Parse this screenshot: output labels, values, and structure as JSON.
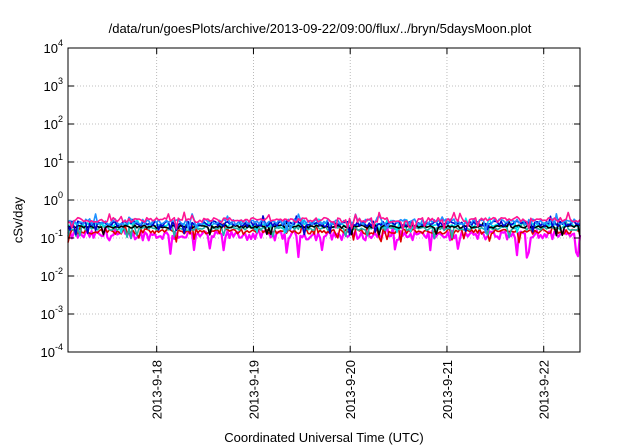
{
  "chart_data": {
    "type": "line",
    "title": "/data/run/goesPlots/archive/2013-09-22/09:00/flux/../bryn/5daysMoon.plot",
    "xlabel": "Coordinated Universal Time (UTC)",
    "ylabel": "cSv/day",
    "yscale": "log",
    "ylim": [
      0.0001,
      10000
    ],
    "xlim": [
      "2013-09-17 02:00",
      "2013-09-22 09:00"
    ],
    "grid": true,
    "legend": "none",
    "yticks": [
      {
        "base": "10",
        "exp": "-4",
        "value": 0.0001
      },
      {
        "base": "10",
        "exp": "-3",
        "value": 0.001
      },
      {
        "base": "10",
        "exp": "-2",
        "value": 0.01
      },
      {
        "base": "10",
        "exp": "-1",
        "value": 0.1
      },
      {
        "base": "10",
        "exp": "0",
        "value": 1
      },
      {
        "base": "10",
        "exp": "1",
        "value": 10
      },
      {
        "base": "10",
        "exp": "2",
        "value": 100
      },
      {
        "base": "10",
        "exp": "3",
        "value": 1000
      },
      {
        "base": "10",
        "exp": "4",
        "value": 10000
      }
    ],
    "xticks": [
      "2013-9-18",
      "2013-9-19",
      "2013-9-20",
      "2013-9-21",
      "2013-9-22"
    ],
    "series": [
      {
        "color": "#ff00ff",
        "baseline": 0.12,
        "spread": 0.35
      },
      {
        "color": "#e00000",
        "baseline": 0.15,
        "spread": 0.2
      },
      {
        "color": "#20b2aa",
        "baseline": 0.18,
        "spread": 0.15
      },
      {
        "color": "#00e5ee",
        "baseline": 0.22,
        "spread": 0.18
      },
      {
        "color": "#000000",
        "baseline": 0.2,
        "spread": 0.12
      },
      {
        "color": "#0000cd",
        "baseline": 0.24,
        "spread": 0.2
      },
      {
        "color": "#1e90ff",
        "baseline": 0.27,
        "spread": 0.22
      },
      {
        "color": "#ff1493",
        "baseline": 0.3,
        "spread": 0.18
      }
    ]
  }
}
